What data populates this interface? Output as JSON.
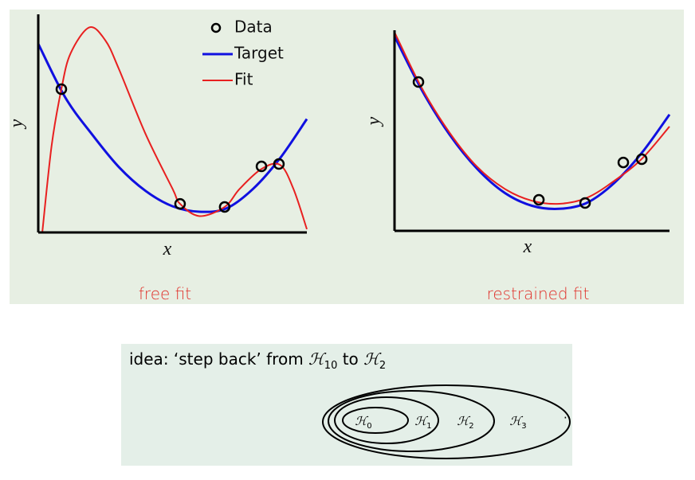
{
  "chart_data": [
    {
      "type": "line",
      "caption": "free fit",
      "xlabel": "x",
      "ylabel": "y",
      "xlim": [
        0,
        1
      ],
      "ylim": [
        0,
        1
      ],
      "series": [
        {
          "name": "Data",
          "style": "markers",
          "color": "#000000",
          "x": [
            0.086,
            0.528,
            0.694,
            0.831,
            0.896
          ],
          "values": [
            0.657,
            0.131,
            0.117,
            0.303,
            0.314
          ]
        },
        {
          "name": "Target",
          "style": "line",
          "color": "#1010e0",
          "x": [
            0,
            0.1,
            0.2,
            0.3,
            0.4,
            0.5,
            0.6,
            0.7,
            0.8,
            0.9,
            1.0
          ],
          "values": [
            0.865,
            0.62,
            0.45,
            0.3,
            0.19,
            0.12,
            0.095,
            0.11,
            0.2,
            0.34,
            0.52
          ]
        },
        {
          "name": "Fit",
          "style": "line",
          "color": "#e82020",
          "x": [
            0.015,
            0.05,
            0.086,
            0.12,
            0.19,
            0.25,
            0.3,
            0.4,
            0.5,
            0.528,
            0.6,
            0.694,
            0.75,
            0.83,
            0.9,
            0.95,
            1.0
          ],
          "values": [
            0,
            0.4,
            0.657,
            0.82,
            0.94,
            0.88,
            0.75,
            0.45,
            0.2,
            0.131,
            0.075,
            0.117,
            0.2,
            0.29,
            0.31,
            0.2,
            0.015
          ]
        }
      ]
    },
    {
      "type": "line",
      "caption": "restrained fit",
      "xlabel": "x",
      "ylabel": "y",
      "xlim": [
        0,
        1
      ],
      "ylim": [
        0,
        1
      ],
      "series": [
        {
          "name": "Data",
          "style": "markers",
          "color": "#000000",
          "x": [
            0.087,
            0.525,
            0.693,
            0.832,
            0.899
          ],
          "values": [
            0.742,
            0.155,
            0.139,
            0.341,
            0.357
          ]
        },
        {
          "name": "Target",
          "style": "line",
          "color": "#1010e0",
          "x": [
            0,
            0.1,
            0.2,
            0.3,
            0.4,
            0.5,
            0.6,
            0.7,
            0.8,
            0.9,
            1.0
          ],
          "values": [
            0.97,
            0.7,
            0.48,
            0.31,
            0.19,
            0.125,
            0.11,
            0.14,
            0.24,
            0.39,
            0.58
          ]
        },
        {
          "name": "Fit",
          "style": "line",
          "color": "#e82020",
          "x": [
            0,
            0.1,
            0.2,
            0.3,
            0.4,
            0.5,
            0.6,
            0.7,
            0.8,
            0.9,
            1.0
          ],
          "values": [
            0.99,
            0.71,
            0.49,
            0.32,
            0.21,
            0.15,
            0.135,
            0.165,
            0.25,
            0.36,
            0.52
          ]
        }
      ]
    }
  ],
  "idea": {
    "text": "idea: ‘step back’ from",
    "from": {
      "symbol": "ℋ",
      "sub": "10"
    },
    "middle": "to",
    "to": {
      "symbol": "ℋ",
      "sub": "2"
    }
  },
  "sets": [
    {
      "symbol": "ℋ",
      "sub": "0"
    },
    {
      "symbol": "ℋ",
      "sub": "1"
    },
    {
      "symbol": "ℋ",
      "sub": "2"
    },
    {
      "symbol": "ℋ",
      "sub": "3"
    }
  ],
  "more": "··"
}
